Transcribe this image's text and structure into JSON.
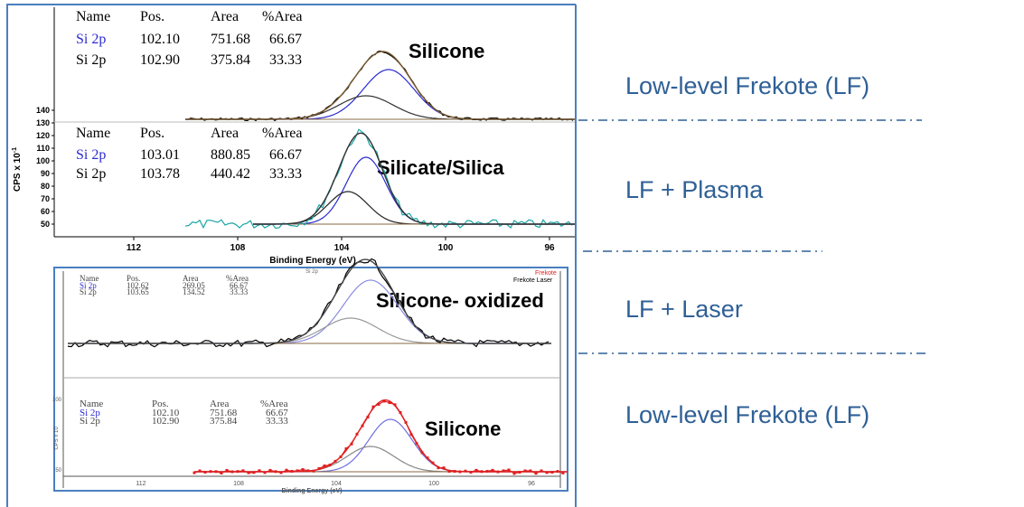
{
  "colors": {
    "label_blue": "#2f6096",
    "fit_blue": "#2b2bd0",
    "envelope_red": "#e02020",
    "raw_teal": "#1aa6a6",
    "panel_border": "#4a7fc0"
  },
  "labels": {
    "row1": "Low-level Frekote (LF)",
    "row2": "LF + Plasma",
    "row3": "LF + Laser",
    "row4": "Low-level Frekote (LF)"
  },
  "chart_data": [
    {
      "type": "line",
      "annotation": "Silicone",
      "table": {
        "headers": [
          "Name",
          "Pos.",
          "Area",
          "%Area"
        ],
        "rows": [
          [
            "Si 2p",
            "102.10",
            "751.68",
            "66.67"
          ],
          [
            "Si 2p",
            "102.90",
            "375.84",
            "33.33"
          ]
        ]
      },
      "peaks": [
        {
          "pos": 102.1,
          "area": 751.68
        },
        {
          "pos": 102.9,
          "area": 375.84
        }
      ]
    },
    {
      "type": "line",
      "annotation": "Silicate/Silica",
      "xlabel": "Binding Energy (eV)",
      "ylabel": "CPS x 10",
      "ylabel_sup": "-1",
      "xticks": [
        "112",
        "108",
        "104",
        "100",
        "96"
      ],
      "yticks": [
        "50",
        "60",
        "70",
        "80",
        "90",
        "100",
        "110",
        "120",
        "130",
        "140"
      ],
      "table": {
        "headers": [
          "Name",
          "Pos.",
          "Area",
          "%Area"
        ],
        "rows": [
          [
            "Si 2p",
            "103.01",
            "880.85",
            "66.67"
          ],
          [
            "Si 2p",
            "103.78",
            "440.42",
            "33.33"
          ]
        ]
      },
      "peaks": [
        {
          "pos": 103.01,
          "area": 880.85
        },
        {
          "pos": 103.78,
          "area": 440.42
        }
      ]
    },
    {
      "type": "line",
      "annotation": "Silicone- oxidized",
      "title": "Si 2p",
      "legend": [
        "Frekote",
        "Frekote Laser"
      ],
      "table": {
        "headers": [
          "Name",
          "Pos.",
          "Area",
          "%Area"
        ],
        "rows": [
          [
            "Si 2p",
            "102.62",
            "269.05",
            "66.67"
          ],
          [
            "Si 2p",
            "103.65",
            "134.52",
            "33.33"
          ]
        ]
      },
      "peaks": [
        {
          "pos": 102.62,
          "area": 269.05
        },
        {
          "pos": 103.65,
          "area": 134.52
        }
      ]
    },
    {
      "type": "line",
      "annotation": "Silicone",
      "xlabel": "Binding Energy (eV)",
      "ylabel": "CPS x 10",
      "yticks": [
        "50",
        "100"
      ],
      "xticks": [
        "112",
        "108",
        "104",
        "100",
        "96"
      ],
      "table": {
        "headers": [
          "Name",
          "Pos.",
          "Area",
          "%Area"
        ],
        "rows": [
          [
            "Si 2p",
            "102.10",
            "751.68",
            "66.67"
          ],
          [
            "Si 2p",
            "102.90",
            "375.84",
            "33.33"
          ]
        ]
      },
      "peaks": [
        {
          "pos": 102.1,
          "area": 751.68
        },
        {
          "pos": 102.9,
          "area": 375.84
        }
      ]
    }
  ]
}
